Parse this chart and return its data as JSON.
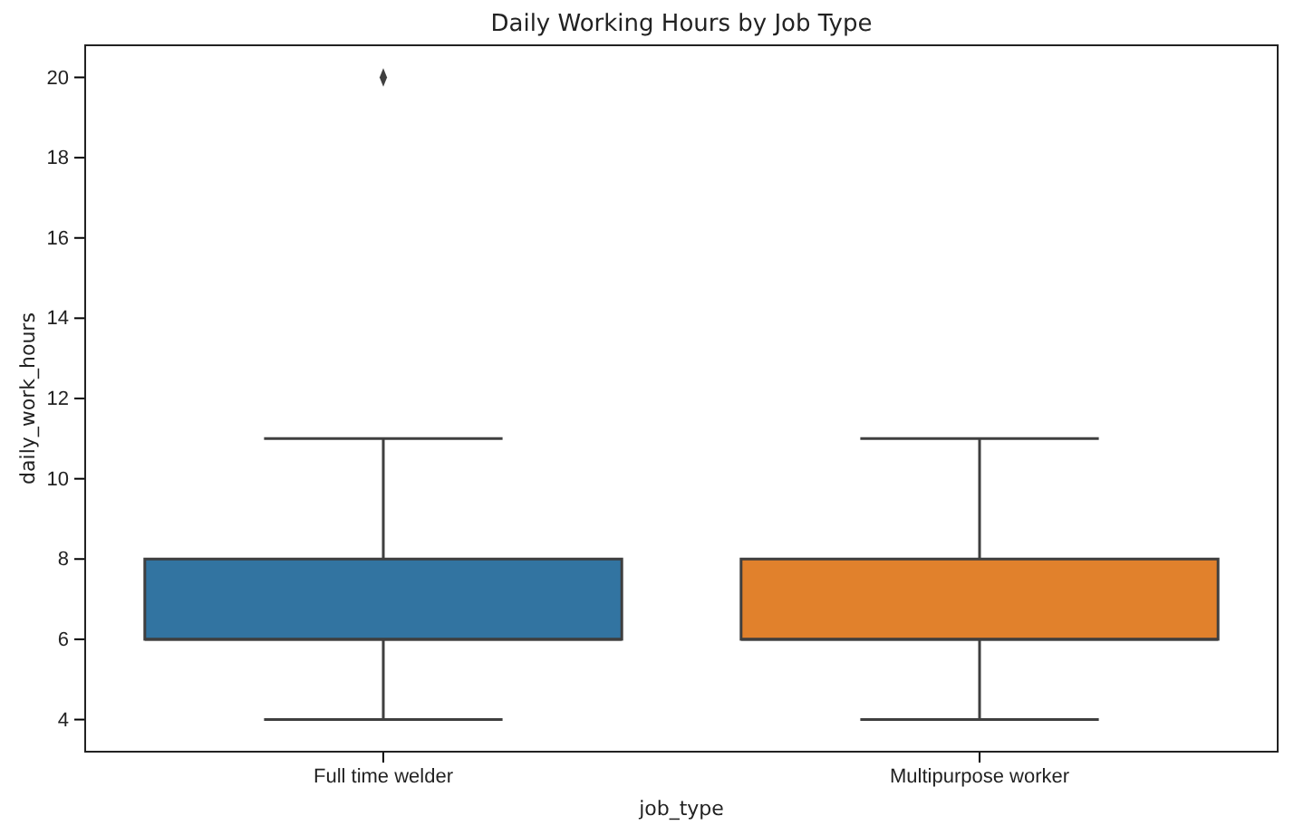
{
  "chart_data": {
    "type": "box",
    "title": "Daily Working Hours by Job Type",
    "xlabel": "job_type",
    "ylabel": "daily_work_hours",
    "categories": [
      "Full time welder",
      "Multipurpose worker"
    ],
    "colors": [
      "#3274a1",
      "#e1812c"
    ],
    "boxes": [
      {
        "low": 4,
        "q1": 6,
        "median": 6,
        "q3": 8,
        "high": 11,
        "outliers": [
          20
        ]
      },
      {
        "low": 4,
        "q1": 6,
        "median": 6,
        "q3": 8,
        "high": 11
      }
    ],
    "ylim": [
      3.2,
      20.8
    ],
    "yticks": [
      4,
      6,
      8,
      10,
      12,
      14,
      16,
      18,
      20
    ],
    "marker": "diamond"
  }
}
